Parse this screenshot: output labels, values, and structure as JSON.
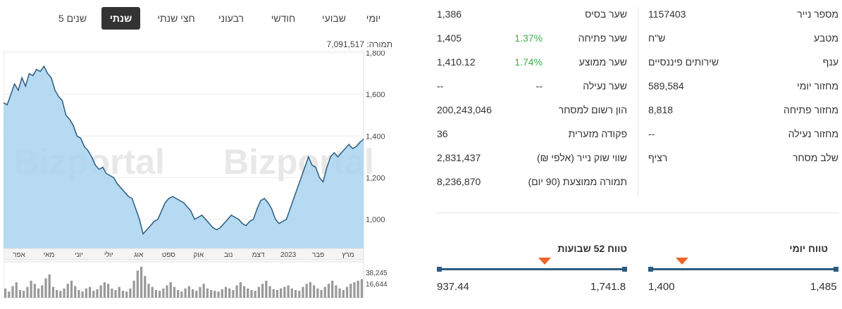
{
  "tabs": [
    {
      "label": "יומי",
      "active": false
    },
    {
      "label": "שבועי",
      "active": false
    },
    {
      "label": "חודשי",
      "active": false
    },
    {
      "label": "רבעוני",
      "active": false
    },
    {
      "label": "חצי שנתי",
      "active": false
    },
    {
      "label": "שנתי",
      "active": true
    },
    {
      "label": "5 שנים",
      "active": false
    }
  ],
  "turnover_label": "תמורה: 7,091,517",
  "watermark": "Bizportal",
  "chart_data": {
    "type": "area",
    "y_ticks": [
      "1,800",
      "1,600",
      "1,400",
      "1,200",
      "1,000"
    ],
    "ylim": [
      860,
      1810
    ],
    "x_labels": [
      "אפר",
      "מאי",
      "יוני",
      "יולי",
      "אוג",
      "ספט",
      "אוק",
      "נוב",
      "דצמ",
      "2023",
      "פבר",
      "מרץ"
    ],
    "series": [
      {
        "values": [
          1560,
          1550,
          1600,
          1650,
          1620,
          1680,
          1640,
          1700,
          1690,
          1720,
          1710,
          1735,
          1700,
          1680,
          1620,
          1590,
          1570,
          1500,
          1480,
          1450,
          1400,
          1390,
          1350,
          1330,
          1300,
          1260,
          1240,
          1250,
          1220,
          1210,
          1200,
          1170,
          1150,
          1130,
          1110,
          1100,
          1050,
          1000,
          930,
          950,
          970,
          990,
          1000,
          1040,
          1080,
          1100,
          1110,
          1100,
          1090,
          1080,
          1060,
          1040,
          1000,
          1010,
          1020,
          1000,
          980,
          960,
          950,
          960,
          980,
          1000,
          1020,
          1010,
          1000,
          980,
          970,
          990,
          1000,
          1050,
          1090,
          1100,
          1080,
          1050,
          1000,
          980,
          990,
          1000,
          1050,
          1100,
          1150,
          1200,
          1250,
          1300,
          1260,
          1250,
          1200,
          1180,
          1250,
          1300,
          1320,
          1300,
          1320,
          1340,
          1360,
          1340,
          1350,
          1370,
          1385
        ]
      }
    ],
    "volume": {
      "y_ticks": [
        "38,245",
        "16,644"
      ],
      "values": [
        12,
        8,
        15,
        20,
        10,
        9,
        14,
        22,
        18,
        12,
        16,
        25,
        30,
        14,
        10,
        9,
        12,
        18,
        22,
        15,
        10,
        8,
        12,
        14,
        9,
        11,
        16,
        20,
        18,
        12,
        10,
        14,
        9,
        8,
        12,
        22,
        35,
        40,
        28,
        18,
        14,
        10,
        9,
        12,
        16,
        20,
        14,
        10,
        8,
        12,
        15,
        11,
        9,
        14,
        18,
        12,
        10,
        9,
        8,
        11,
        14,
        12,
        10,
        16,
        20,
        15,
        12,
        10,
        9,
        14,
        18,
        22,
        15,
        11,
        10,
        12,
        14,
        16,
        12,
        10,
        9,
        14,
        18,
        20,
        16,
        12,
        10,
        14,
        18,
        22,
        16,
        12,
        10,
        14,
        18,
        20,
        22,
        24
      ]
    }
  },
  "left_info": [
    {
      "label": "מספר נייר",
      "value": "1157403"
    },
    {
      "label": "מטבע",
      "value": "ש\"ח"
    },
    {
      "label": "ענף",
      "value": "שירותים פיננסיים"
    },
    {
      "label": "מחזור יומי",
      "value": "589,584"
    },
    {
      "label": "מחזור פתיחה",
      "value": "8,818"
    },
    {
      "label": "מחזור נעילה",
      "value": "--"
    },
    {
      "label": "שלב מסחר",
      "value": "רציף"
    }
  ],
  "right_info": [
    {
      "label": "שער בסיס",
      "change": "",
      "value": "1,386"
    },
    {
      "label": "שער פתיחה",
      "change": "1.37%",
      "value": "1,405"
    },
    {
      "label": "שער ממוצע",
      "change": "1.74%",
      "value": "1,410.12"
    },
    {
      "label": "שער נעילה",
      "change": "--",
      "value": "--"
    },
    {
      "label": "הון רשום למסחר",
      "change": "",
      "value": "200,243,046"
    },
    {
      "label": "פקודה מזערית",
      "change": "",
      "value": "36"
    },
    {
      "label": "שווי שוק נייר (אלפי ₪)",
      "change": "",
      "value": "2,831,437"
    },
    {
      "label": "תמורה ממוצעת (90 יום)",
      "change": "",
      "value": "8,236,870"
    }
  ],
  "range52": {
    "title": "טווח 52 שבועות",
    "low": "937.44",
    "high": "1,741.8",
    "marker_fraction": 0.57
  },
  "rangeDay": {
    "title": "טווח יומי",
    "low": "1,400",
    "high": "1,485",
    "marker_fraction": 0.17
  },
  "colors": {
    "accent": "#2d5c7f",
    "marker": "#f0632a",
    "positive": "#3cb34a",
    "area_fill": "#a8d4f0",
    "line": "#2d5c7f"
  }
}
